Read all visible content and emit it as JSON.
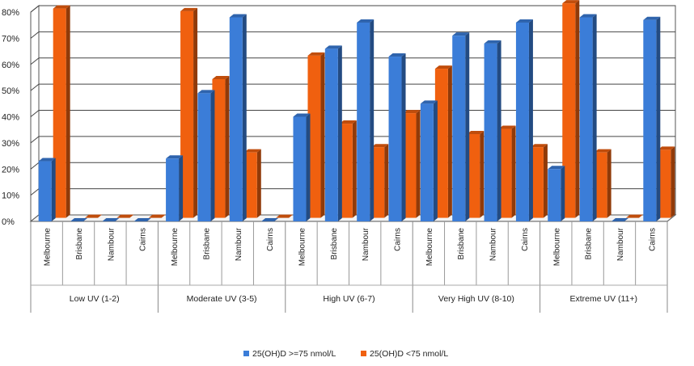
{
  "chart_data": {
    "type": "bar",
    "groups": [
      {
        "label": "Low UV (1-2)",
        "categories": [
          "Melbourne",
          "Brisbane",
          "Nambour",
          "Cairns"
        ]
      },
      {
        "label": "Moderate UV (3-5)",
        "categories": [
          "Melbourne",
          "Brisbane",
          "Nambour",
          "Cairns"
        ]
      },
      {
        "label": "High UV (6-7)",
        "categories": [
          "Melbourne",
          "Brisbane",
          "Nambour",
          "Cairns"
        ]
      },
      {
        "label": "Very High UV (8-10)",
        "categories": [
          "Melbourne",
          "Brisbane",
          "Nambour",
          "Cairns"
        ]
      },
      {
        "label": "Extreme UV (11+)",
        "categories": [
          "Melbourne",
          "Brisbane",
          "Nambour",
          "Cairns"
        ]
      }
    ],
    "series": [
      {
        "name": "25(OH)D >=75 nmol/L",
        "color": "#3b7dd8",
        "values": [
          23,
          0,
          0,
          0,
          24,
          49,
          78,
          0,
          40,
          66,
          76,
          63,
          45,
          71,
          68,
          76,
          20,
          78,
          0,
          77
        ]
      },
      {
        "name": "25(OH)D <75 nmol/L",
        "color": "#f0600f",
        "values": [
          80,
          0,
          0,
          0,
          79,
          53,
          25,
          0,
          62,
          36,
          27,
          40,
          57,
          32,
          34,
          27,
          82,
          25,
          0,
          26
        ]
      }
    ],
    "ylim": [
      0,
      80
    ],
    "yticks": [
      "0%",
      "10%",
      "20%",
      "30%",
      "40%",
      "50%",
      "60%",
      "70%",
      "80%"
    ],
    "grid": true,
    "legend": "bottom"
  }
}
